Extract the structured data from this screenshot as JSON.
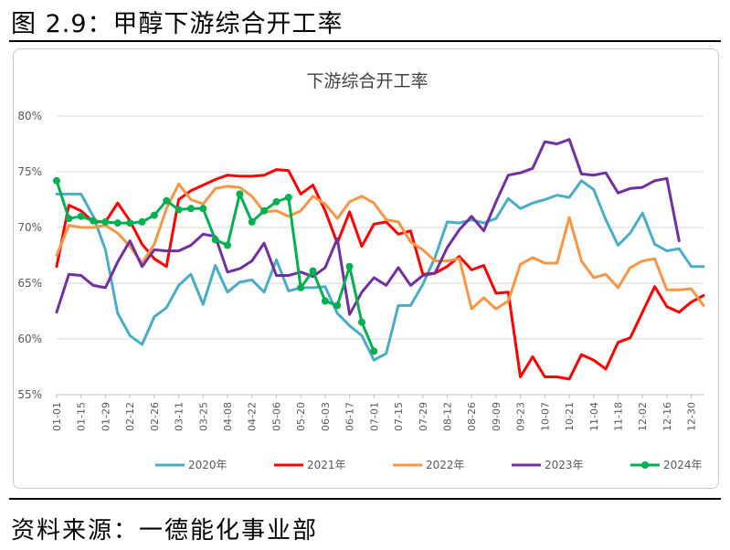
{
  "figure": {
    "header": "图 2.9：甲醇下游综合开工率",
    "source": "资料来源：一德能化事业部"
  },
  "chart_data": {
    "type": "line",
    "title": "下游综合开工率",
    "xlabel": "",
    "ylabel": "",
    "ylim": [
      55,
      80
    ],
    "y_ticks": [
      "55%",
      "60%",
      "65%",
      "70%",
      "75%",
      "80%"
    ],
    "x_tick_labels": [
      "01-01",
      "01-15",
      "01-29",
      "02-12",
      "02-26",
      "03-11",
      "03-25",
      "04-08",
      "04-22",
      "05-06",
      "05-20",
      "06-03",
      "06-17",
      "07-01",
      "07-15",
      "07-29",
      "08-12",
      "08-26",
      "09-09",
      "09-23",
      "10-07",
      "10-21",
      "11-04",
      "11-18",
      "12-02",
      "12-16",
      "12-30"
    ],
    "grid": "horizontal",
    "legend_position": "bottom",
    "series": [
      {
        "name": "2020年",
        "color": "#4bacc6",
        "marker": false,
        "values": [
          73,
          73,
          73,
          71,
          68,
          62.3,
          60.3,
          59.5,
          62,
          62.8,
          64.8,
          65.8,
          63.1,
          66.6,
          64.2,
          65.1,
          65.3,
          64.2,
          67.1,
          64.3,
          64.6,
          64.6,
          64.7,
          62.3,
          61.2,
          60.3,
          58.1,
          58.7,
          63,
          63,
          64.9,
          67.3,
          70.5,
          70.4,
          70.7,
          70.4,
          70.8,
          72.6,
          71.7,
          72.2,
          72.5,
          72.9,
          72.7,
          74.2,
          73.4,
          70.7,
          68.4,
          69.5,
          71.3,
          68.5,
          67.9,
          68.1,
          66.5,
          66.5
        ]
      },
      {
        "name": "2021年",
        "color": "#ff0000",
        "marker": false,
        "values": [
          66.5,
          72,
          71.5,
          70.5,
          70.5,
          72.2,
          70.6,
          68.5,
          67.2,
          66.5,
          72.5,
          73.3,
          73.8,
          74.3,
          74.7,
          74.6,
          74.6,
          74.7,
          75.2,
          75.1,
          73,
          73.8,
          71.5,
          68.6,
          71.4,
          68.3,
          70.3,
          70.5,
          69.4,
          69.7,
          65.8,
          65.9,
          66.5,
          67.4,
          66.2,
          66.6,
          64.1,
          64.2,
          56.6,
          58.4,
          56.6,
          56.6,
          56.4,
          58.6,
          58.1,
          57.3,
          59.7,
          60.1,
          62.4,
          64.7,
          62.9,
          62.4,
          63.3,
          63.9
        ]
      },
      {
        "name": "2022年",
        "color": "#f79646",
        "marker": false,
        "values": [
          67.5,
          70.2,
          70,
          70,
          70.2,
          69.5,
          68.3,
          66.8,
          68.5,
          71.7,
          73.9,
          72.5,
          72.1,
          73.5,
          73.7,
          73.6,
          72.8,
          71.4,
          71.5,
          71,
          71.5,
          72.8,
          72.1,
          70.8,
          72.3,
          72.8,
          72.2,
          70.7,
          70.5,
          68.7,
          68,
          67,
          67,
          67.2,
          62.7,
          63.7,
          62.7,
          63.4,
          66.7,
          67.3,
          66.8,
          66.8,
          70.9,
          67,
          65.5,
          65.8,
          64.6,
          66.4,
          67,
          67.2,
          64.4,
          64.4,
          64.5,
          63
        ]
      },
      {
        "name": "2023年",
        "color": "#7030a0",
        "marker": false,
        "values": [
          62.4,
          65.8,
          65.7,
          64.8,
          64.6,
          66.9,
          68.8,
          66.5,
          68,
          67.9,
          67.9,
          68.4,
          69.4,
          69.2,
          66,
          66.3,
          67,
          68.6,
          65.7,
          65.7,
          66,
          65.6,
          66.4,
          69,
          62.2,
          64.2,
          65.5,
          64.8,
          66.4,
          64.8,
          65.7,
          65.9,
          68.2,
          69.8,
          71,
          69.7,
          72.3,
          74.7,
          74.9,
          75.3,
          77.7,
          77.5,
          77.9,
          74.8,
          74.7,
          74.9,
          73.1,
          73.5,
          73.6,
          74.2,
          74.4,
          68.8
        ]
      },
      {
        "name": "2024年",
        "color": "#00b050",
        "marker": true,
        "values": [
          74.2,
          70.8,
          71,
          70.6,
          70.5,
          70.4,
          70.4,
          70.5,
          71.1,
          72.4,
          71.6,
          71.7,
          71.7,
          68.9,
          68.4,
          73,
          70.5,
          71.5,
          72.3,
          72.7,
          64.6,
          66.1,
          63.4,
          63,
          66.5,
          61.5,
          58.9
        ]
      }
    ]
  }
}
